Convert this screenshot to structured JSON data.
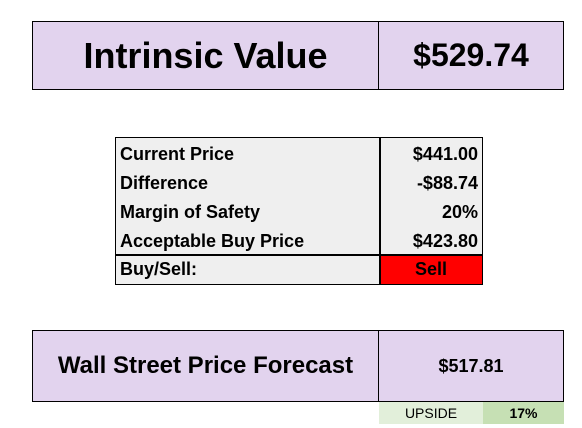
{
  "intrinsic": {
    "label": "Intrinsic Value",
    "value": "$529.74"
  },
  "metrics": {
    "rows": [
      {
        "label": "Current Price",
        "value": "$441.00"
      },
      {
        "label": "Difference",
        "value": "-$88.74"
      },
      {
        "label": "Margin of Safety",
        "value": "20%"
      },
      {
        "label": "Acceptable Buy Price",
        "value": "$423.80"
      }
    ],
    "signal_label": "Buy/Sell:",
    "signal_value": "Sell"
  },
  "wall_street": {
    "label": "Wall Street Price Forecast",
    "value": "$517.81"
  },
  "upside": {
    "label": "UPSIDE",
    "value": "17%"
  },
  "colors": {
    "header_fill": "#e2d3ee",
    "table_fill": "#efefef",
    "sell_fill": "#ff0000",
    "upside_label_fill": "#e2efda",
    "upside_value_fill": "#c6e0b4"
  }
}
